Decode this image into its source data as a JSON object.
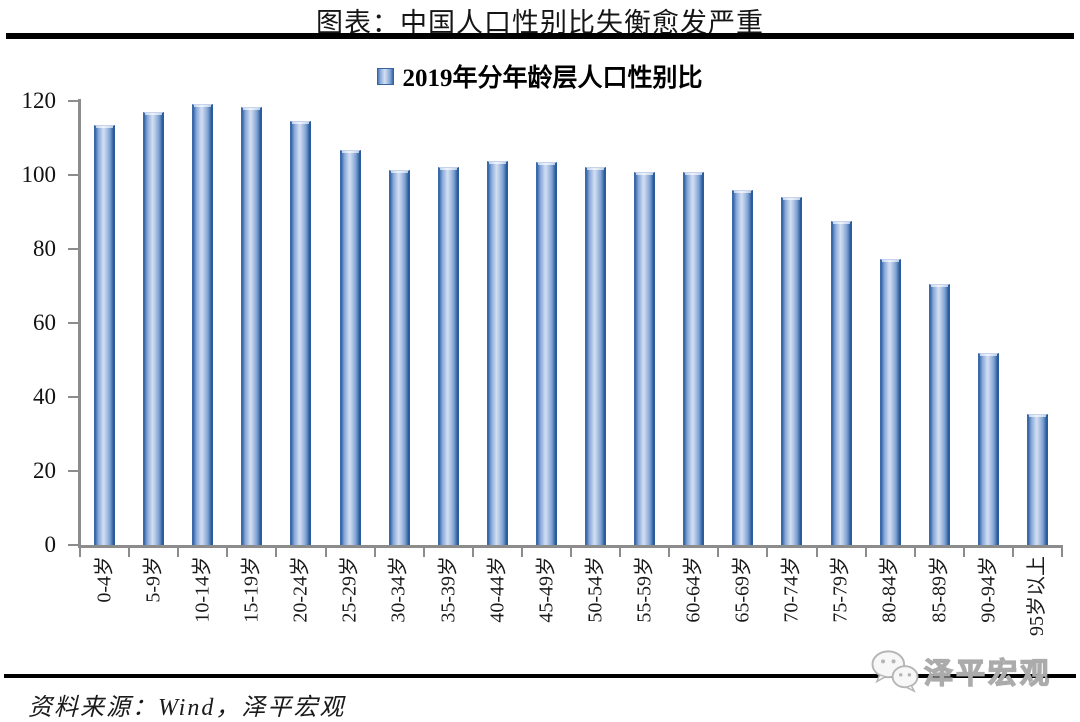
{
  "page": {
    "title": "图表：中国人口性别比失衡愈发严重",
    "source_note": "资料来源：Wind，泽平宏观",
    "watermark": "泽平宏观"
  },
  "colors": {
    "bar_light": "#d3dff2",
    "bar_mid": "#7da2d4",
    "bar_edge": "#2b5c9e",
    "axis_gray": "#8c8c8c",
    "rule_black": "#000000",
    "watermark_gray": "#ababab"
  },
  "chart_data": {
    "type": "bar",
    "title": "2019年分年龄层人口性别比",
    "legend": [
      "2019年分年龄层人口性别比"
    ],
    "legend_position": "top-center",
    "categories": [
      "0-4岁",
      "5-9岁",
      "10-14岁",
      "15-19岁",
      "20-24岁",
      "25-29岁",
      "30-34岁",
      "35-39岁",
      "40-44岁",
      "45-49岁",
      "50-54岁",
      "55-59岁",
      "60-64岁",
      "65-69岁",
      "70-74岁",
      "75-79岁",
      "80-84岁",
      "85-89岁",
      "90-94岁",
      "95岁以上"
    ],
    "values": [
      113.6,
      116.9,
      119.1,
      118.4,
      114.6,
      106.7,
      101.3,
      102.1,
      103.8,
      103.6,
      102.2,
      100.8,
      100.9,
      95.9,
      94.1,
      87.7,
      77.4,
      70.5,
      51.8,
      35.3
    ],
    "xlabel": "",
    "ylabel": "",
    "ylim": [
      0,
      120
    ],
    "yticks": [
      0,
      20,
      40,
      60,
      80,
      100,
      120
    ],
    "grid": false
  }
}
